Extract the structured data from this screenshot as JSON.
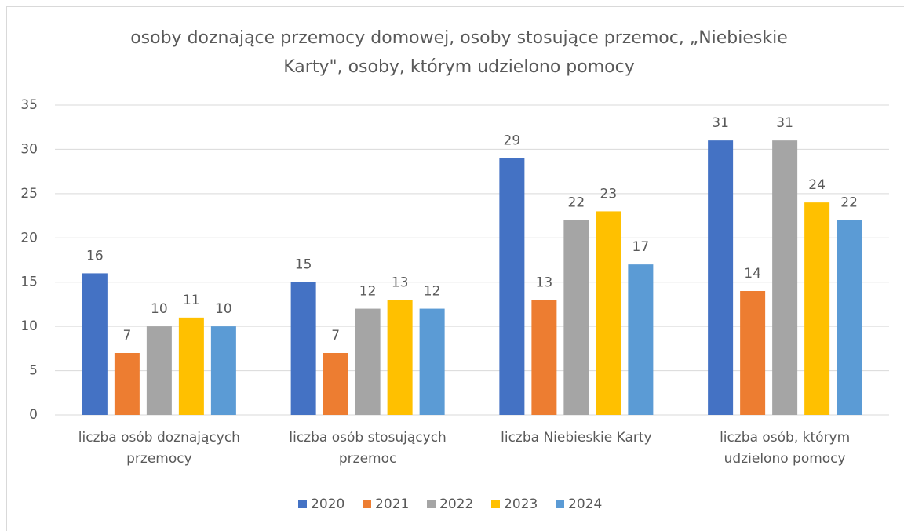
{
  "chart_data": {
    "type": "bar",
    "title": "osoby doznające przemocy domowej, osoby stosujące przemoc, „Niebieskie Karty\", osoby, którym udzielono pomocy",
    "categories": [
      "liczba osób doznających przemocy",
      "liczba osób stosujących przemoc",
      "liczba Niebieskie Karty",
      "liczba osób, którym udzielono pomocy"
    ],
    "series": [
      {
        "name": "2020",
        "color": "#4472c4",
        "values": [
          16,
          15,
          29,
          31
        ]
      },
      {
        "name": "2021",
        "color": "#ed7d31",
        "values": [
          7,
          7,
          13,
          14
        ]
      },
      {
        "name": "2022",
        "color": "#a5a5a5",
        "values": [
          10,
          12,
          22,
          31
        ]
      },
      {
        "name": "2023",
        "color": "#ffc000",
        "values": [
          11,
          13,
          23,
          24
        ]
      },
      {
        "name": "2024",
        "color": "#5b9bd5",
        "values": [
          10,
          12,
          17,
          22
        ]
      }
    ],
    "ylim": [
      0,
      35
    ],
    "yticks": [
      0,
      5,
      10,
      15,
      20,
      25,
      30,
      35
    ],
    "grid": true,
    "legend": "bottom"
  }
}
